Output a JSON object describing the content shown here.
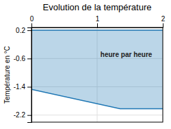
{
  "chart_data": {
    "type": "area",
    "title": "Evolution de la température",
    "ylabel": "Température en °C",
    "x": [
      0,
      1.35,
      2
    ],
    "values": [
      -1.47,
      -2.02,
      -2.02
    ],
    "top_line": 0.2,
    "xlim": [
      0,
      2
    ],
    "xticks": [
      0,
      1,
      2
    ],
    "ylim": [
      -2.4,
      0.28
    ],
    "yticks": [
      0.2,
      -0.6,
      -1.4,
      -2.2
    ],
    "grid": true,
    "annotations": [
      {
        "text": "heure par heure",
        "x": 1.05,
        "y": -0.42
      }
    ]
  }
}
